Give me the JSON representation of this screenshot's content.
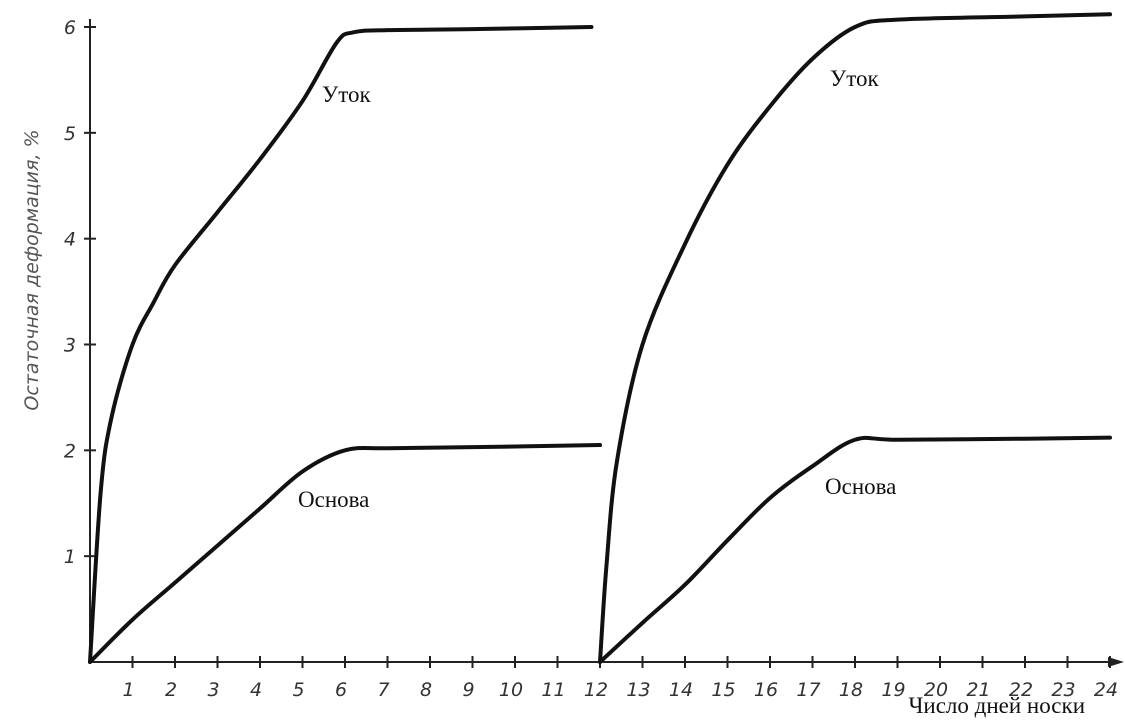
{
  "chart_data": {
    "type": "line",
    "title": "",
    "xlabel": "Число дней носки",
    "ylabel": "Остаточная деформация, %",
    "xlim": [
      0,
      24
    ],
    "ylim": [
      0,
      6
    ],
    "x_ticks": [
      1,
      2,
      3,
      4,
      5,
      6,
      7,
      8,
      9,
      10,
      11,
      12,
      13,
      14,
      15,
      16,
      17,
      18,
      19,
      20,
      21,
      22,
      23,
      24
    ],
    "y_ticks": [
      1,
      2,
      3,
      4,
      5,
      6
    ],
    "grid": false,
    "line_color": "#111111",
    "series": [
      {
        "name": "Уток",
        "x": [
          0,
          0.25,
          0.5,
          1,
          1.5,
          2,
          3,
          4,
          5,
          5.8,
          6.2,
          7,
          9,
          11.8
        ],
        "y": [
          0,
          1.6,
          2.3,
          3.0,
          3.4,
          3.75,
          4.25,
          4.75,
          5.3,
          5.85,
          5.95,
          5.97,
          5.98,
          6.0
        ]
      },
      {
        "name": "Основа",
        "x": [
          0,
          1,
          2,
          3,
          4,
          5,
          6,
          7,
          9,
          12
        ],
        "y": [
          0,
          0.4,
          0.75,
          1.1,
          1.45,
          1.8,
          2.0,
          2.02,
          2.03,
          2.05
        ]
      },
      {
        "name": "Уток",
        "x": [
          12,
          12.15,
          12.4,
          13,
          14,
          15,
          16,
          17,
          18,
          19,
          22,
          24
        ],
        "y": [
          0,
          0.9,
          1.9,
          3.0,
          3.95,
          4.7,
          5.25,
          5.7,
          6.0,
          6.07,
          6.1,
          6.12
        ]
      },
      {
        "name": "Основа",
        "x": [
          12,
          13,
          14,
          15,
          16,
          17,
          18,
          19,
          22,
          24
        ],
        "y": [
          0,
          0.37,
          0.73,
          1.15,
          1.55,
          1.85,
          2.1,
          2.1,
          2.11,
          2.12
        ]
      }
    ],
    "curve_labels": [
      "Уток",
      "Основа",
      "Уток",
      "Основа"
    ]
  }
}
